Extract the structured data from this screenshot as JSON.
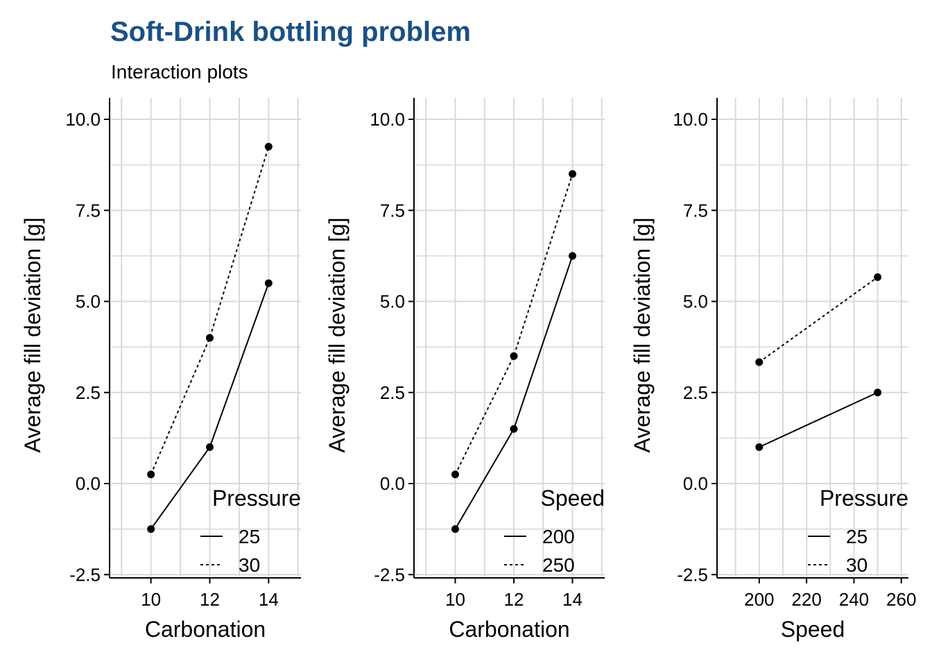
{
  "title": "Soft-Drink bottling problem",
  "subtitle": "Interaction plots",
  "colors": {
    "title": "#1c5084",
    "grid": "#d9d9d9",
    "ink": "#000000"
  },
  "chart_data": [
    {
      "type": "line",
      "xlabel": "Carbonation",
      "ylabel": "Average fill deviation [g]",
      "xlim": [
        8.9,
        15.1
      ],
      "ylim": [
        -2.6,
        10.6
      ],
      "x_ticks": [
        "10",
        "12",
        "14"
      ],
      "y_ticks": [
        "-2.5",
        "0.0",
        "2.5",
        "5.0",
        "7.5",
        "10.0"
      ],
      "grid": true,
      "legend_position": "bottom-right",
      "legend_title": "Pressure",
      "x": [
        10,
        12,
        14
      ],
      "series": [
        {
          "name": "25",
          "linetype": "solid",
          "values": [
            -1.25,
            1.0,
            5.5
          ]
        },
        {
          "name": "30",
          "linetype": "dotted",
          "values": [
            0.25,
            4.0,
            9.25
          ]
        }
      ]
    },
    {
      "type": "line",
      "xlabel": "Carbonation",
      "ylabel": "Average fill deviation [g]",
      "xlim": [
        8.9,
        15.1
      ],
      "ylim": [
        -2.6,
        10.6
      ],
      "x_ticks": [
        "10",
        "12",
        "14"
      ],
      "y_ticks": [
        "-2.5",
        "0.0",
        "2.5",
        "5.0",
        "7.5",
        "10.0"
      ],
      "grid": true,
      "legend_position": "bottom-right",
      "legend_title": "Speed",
      "x": [
        10,
        12,
        14
      ],
      "series": [
        {
          "name": "200",
          "linetype": "solid",
          "values": [
            -1.25,
            1.5,
            6.25
          ]
        },
        {
          "name": "250",
          "linetype": "dotted",
          "values": [
            0.25,
            3.5,
            8.5
          ]
        }
      ]
    },
    {
      "type": "line",
      "xlabel": "Speed",
      "ylabel": "Average fill deviation [g]",
      "xlim": [
        186,
        263
      ],
      "ylim": [
        -2.6,
        10.6
      ],
      "x_ticks": [
        "200",
        "220",
        "240",
        "260"
      ],
      "y_ticks": [
        "-2.5",
        "0.0",
        "2.5",
        "5.0",
        "7.5",
        "10.0"
      ],
      "grid": true,
      "legend_position": "bottom-right",
      "legend_title": "Pressure",
      "x": [
        200,
        250
      ],
      "series": [
        {
          "name": "25",
          "linetype": "solid",
          "values": [
            1.0,
            2.5
          ]
        },
        {
          "name": "30",
          "linetype": "dotted",
          "values": [
            3.333,
            5.667
          ]
        }
      ]
    }
  ]
}
